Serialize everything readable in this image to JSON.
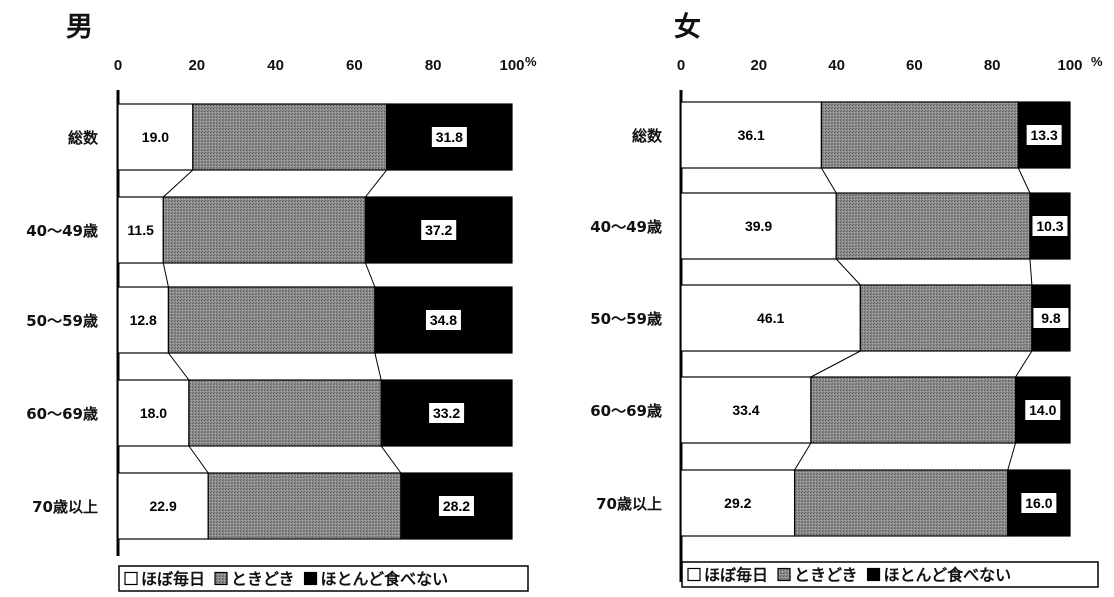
{
  "chart_data": [
    {
      "type": "bar",
      "stacked": true,
      "orientation": "horizontal",
      "title": "男",
      "unit": "%",
      "xlim": [
        0,
        100
      ],
      "ticks": [
        "0",
        "20",
        "40",
        "60",
        "80",
        "100"
      ],
      "categories": [
        "総数",
        "40～49歳",
        "50～59歳",
        "60～69歳",
        "70歳以上"
      ],
      "series": [
        {
          "name": "ほぼ毎日",
          "values": [
            19.0,
            11.5,
            12.8,
            18.0,
            22.9
          ],
          "labels": [
            "19.0",
            "11.5",
            "12.8",
            "18.0",
            "22.9"
          ]
        },
        {
          "name": "ときどき",
          "values": [
            49.2,
            51.3,
            52.4,
            48.8,
            48.9
          ],
          "labels": [
            "",
            "",
            "",
            "",
            ""
          ]
        },
        {
          "name": "ほとんど食べない",
          "values": [
            31.8,
            37.2,
            34.8,
            33.2,
            28.2
          ],
          "labels": [
            "31.8",
            "37.2",
            "34.8",
            "33.2",
            "28.2"
          ]
        }
      ],
      "legend_position": "bottom"
    },
    {
      "type": "bar",
      "stacked": true,
      "orientation": "horizontal",
      "title": "女",
      "unit": "%",
      "xlim": [
        0,
        100
      ],
      "ticks": [
        "0",
        "20",
        "40",
        "60",
        "80",
        "100"
      ],
      "categories": [
        "総数",
        "40～49歳",
        "50～59歳",
        "60～69歳",
        "70歳以上"
      ],
      "series": [
        {
          "name": "ほぼ毎日",
          "values": [
            36.1,
            39.9,
            46.1,
            33.4,
            29.2
          ],
          "labels": [
            "36.1",
            "39.9",
            "46.1",
            "33.4",
            "29.2"
          ]
        },
        {
          "name": "ときどき",
          "values": [
            50.6,
            49.8,
            44.1,
            52.6,
            54.8
          ],
          "labels": [
            "",
            "",
            "",
            "",
            ""
          ]
        },
        {
          "name": "ほとんど食べない",
          "values": [
            13.3,
            10.3,
            9.8,
            14.0,
            16.0
          ],
          "labels": [
            "13.3",
            "10.3",
            "9.8",
            "14.0",
            "16.0"
          ]
        }
      ],
      "legend_position": "bottom"
    }
  ],
  "colors": {
    "ほぼ毎日": "#ffffff",
    "ときどき": "#8a8a8a",
    "ほとんど食べない": "#000000"
  }
}
